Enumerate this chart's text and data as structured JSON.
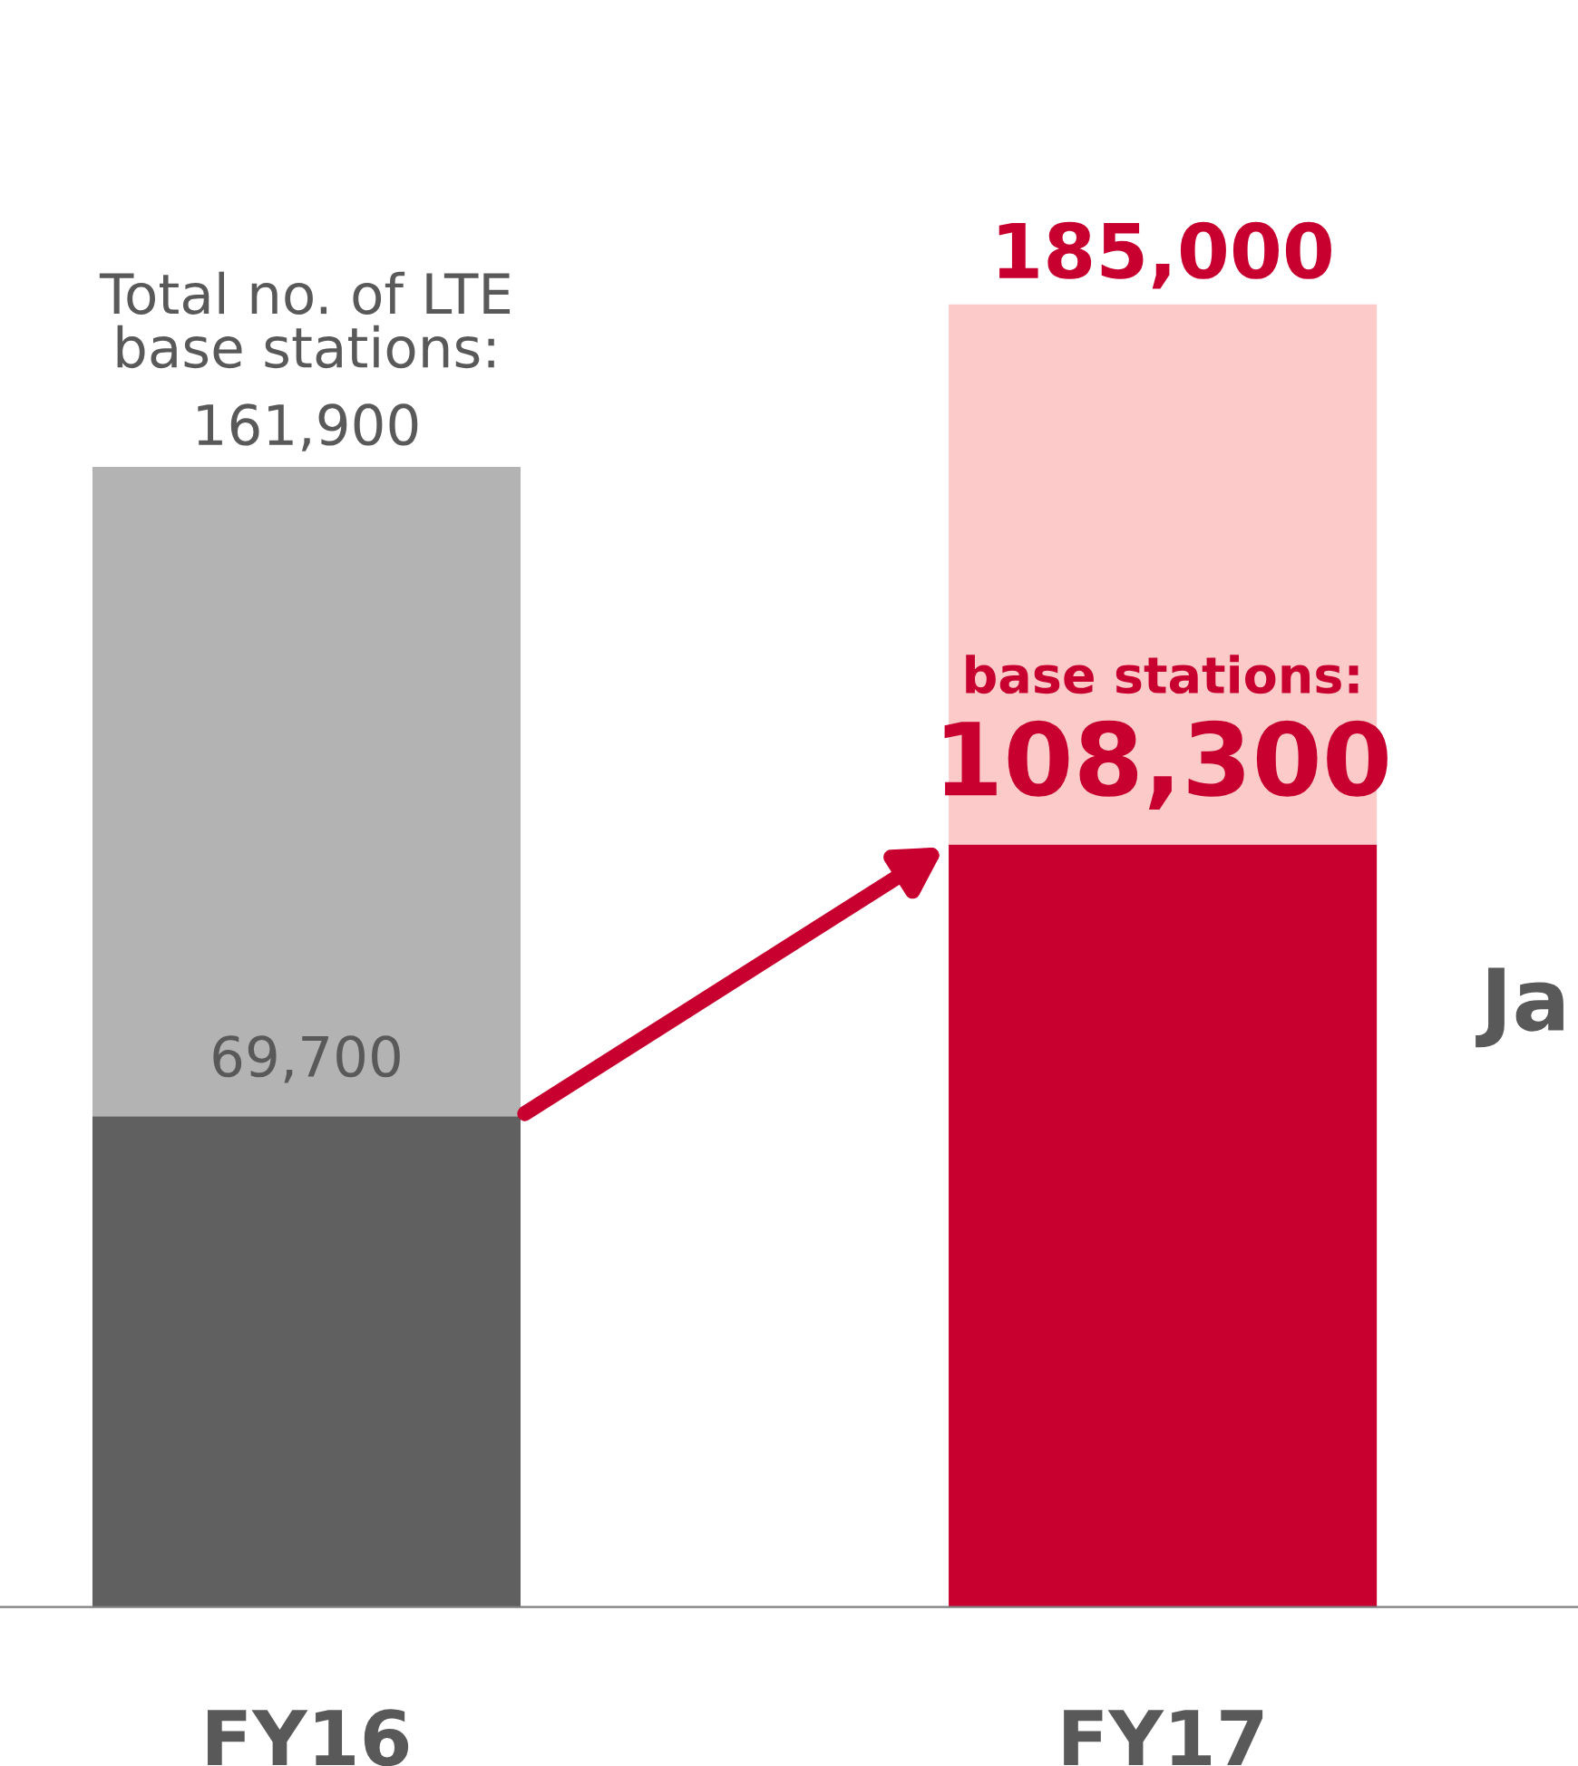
{
  "chart_data": {
    "type": "bar",
    "stacked": true,
    "categories": [
      "FY16",
      "FY17"
    ],
    "series": [
      {
        "colors": [
          "#606060",
          "#c8002f"
        ],
        "values": [
          69700,
          108300
        ],
        "value_labels": [
          "69,700",
          "108,300"
        ]
      },
      {
        "colors": [
          "#b3b3b3",
          "#fdcaca"
        ],
        "values": [
          92200,
          76700
        ]
      }
    ],
    "totals": [
      "161,900",
      "185,000"
    ],
    "annotations": [
      {
        "text": "Total no. of LTE\nbase stations:",
        "x": "FY16",
        "y": 161900
      },
      {
        "text": "base stations:",
        "x": "FY17",
        "y": 108300
      },
      "Ja"
    ],
    "grid": false,
    "legend": false
  }
}
